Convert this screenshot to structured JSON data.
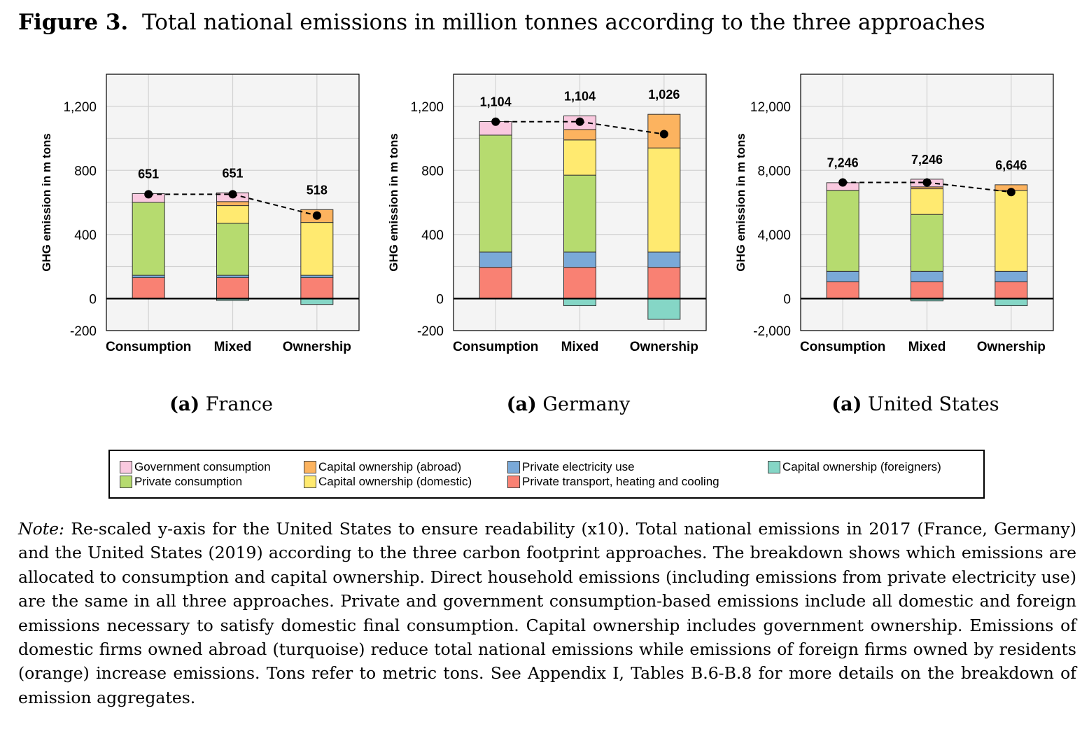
{
  "figure": {
    "label": "Figure 3.",
    "title": "Total national emissions in million tonnes according to the three approaches"
  },
  "component_colors": {
    "private_transport": "#f98173",
    "private_electricity": "#7aa9d8",
    "private_consumption": "#b6db6f",
    "government_consumption": "#f9c9df",
    "capital_domestic": "#ffea70",
    "capital_abroad": "#fcb35f",
    "capital_foreigners": "#85d6c6"
  },
  "legend": {
    "items": [
      {
        "key": "government_consumption",
        "label": "Government consumption",
        "color": "#f9c9df"
      },
      {
        "key": "private_consumption",
        "label": "Private consumption",
        "color": "#b6db6f"
      },
      {
        "key": "capital_abroad",
        "label": "Capital ownership (abroad)",
        "color": "#fcb35f"
      },
      {
        "key": "capital_domestic",
        "label": "Capital ownership (domestic)",
        "color": "#ffea70"
      },
      {
        "key": "private_electricity",
        "label": "Private electricity use",
        "color": "#7aa9d8"
      },
      {
        "key": "private_transport",
        "label": "Private transport, heating and cooling",
        "color": "#f98173"
      },
      {
        "key": "capital_foreigners",
        "label": "Capital ownership (foreigners)",
        "color": "#85d6c6"
      }
    ]
  },
  "chart_data": [
    {
      "type": "bar",
      "stacked": true,
      "caption_letter": "(a)",
      "caption_country": "France",
      "ylabel": "GHG emission in m tons",
      "ylim": [
        -200,
        1400
      ],
      "yticks": [
        -200,
        0,
        400,
        800,
        1200
      ],
      "ytick_labels": [
        "-200",
        "0",
        "400",
        "800",
        "1,200"
      ],
      "categories": [
        "Consumption",
        "Mixed",
        "Ownership"
      ],
      "series": [
        {
          "key": "private_transport",
          "values": [
            130,
            130,
            130
          ]
        },
        {
          "key": "private_electricity",
          "values": [
            15,
            15,
            15
          ]
        },
        {
          "key": "private_consumption",
          "values": [
            455,
            325,
            0
          ]
        },
        {
          "key": "capital_domestic",
          "values": [
            0,
            110,
            330
          ]
        },
        {
          "key": "capital_abroad",
          "values": [
            0,
            25,
            80
          ]
        },
        {
          "key": "government_consumption",
          "values": [
            55,
            55,
            0
          ]
        },
        {
          "key": "capital_foreigners",
          "values": [
            0,
            -12,
            -37
          ]
        }
      ],
      "totals": [
        651,
        651,
        518
      ],
      "total_labels": [
        "651",
        "651",
        "518"
      ]
    },
    {
      "type": "bar",
      "stacked": true,
      "caption_letter": "(a)",
      "caption_country": "Germany",
      "ylabel": "GHG emission in m tons",
      "ylim": [
        -200,
        1400
      ],
      "yticks": [
        -200,
        0,
        400,
        800,
        1200
      ],
      "ytick_labels": [
        "-200",
        "0",
        "400",
        "800",
        "1,200"
      ],
      "categories": [
        "Consumption",
        "Mixed",
        "Ownership"
      ],
      "series": [
        {
          "key": "private_transport",
          "values": [
            195,
            195,
            195
          ]
        },
        {
          "key": "private_electricity",
          "values": [
            95,
            95,
            95
          ]
        },
        {
          "key": "private_consumption",
          "values": [
            730,
            480,
            0
          ]
        },
        {
          "key": "capital_domestic",
          "values": [
            0,
            220,
            650
          ]
        },
        {
          "key": "capital_abroad",
          "values": [
            0,
            65,
            210
          ]
        },
        {
          "key": "government_consumption",
          "values": [
            85,
            85,
            0
          ]
        },
        {
          "key": "capital_foreigners",
          "values": [
            0,
            -45,
            -130
          ]
        }
      ],
      "totals": [
        1104,
        1104,
        1026
      ],
      "total_labels": [
        "1,104",
        "1,104",
        "1,026"
      ]
    },
    {
      "type": "bar",
      "stacked": true,
      "caption_letter": "(a)",
      "caption_country": "United States",
      "ylabel": "GHG emission in m tons",
      "ylim": [
        -2000,
        14000
      ],
      "yticks": [
        -2000,
        0,
        4000,
        8000,
        12000
      ],
      "ytick_labels": [
        "-2,000",
        "0",
        "4,000",
        "8,000",
        "12,000"
      ],
      "categories": [
        "Consumption",
        "Mixed",
        "Ownership"
      ],
      "series": [
        {
          "key": "private_transport",
          "values": [
            1050,
            1050,
            1050
          ]
        },
        {
          "key": "private_electricity",
          "values": [
            650,
            650,
            650
          ]
        },
        {
          "key": "private_consumption",
          "values": [
            5050,
            3550,
            0
          ]
        },
        {
          "key": "capital_domestic",
          "values": [
            0,
            1600,
            5050
          ]
        },
        {
          "key": "capital_abroad",
          "values": [
            0,
            120,
            350
          ]
        },
        {
          "key": "government_consumption",
          "values": [
            480,
            480,
            0
          ]
        },
        {
          "key": "capital_foreigners",
          "values": [
            0,
            -150,
            -450
          ]
        }
      ],
      "totals": [
        7246,
        7246,
        6646
      ],
      "total_labels": [
        "7,246",
        "7,246",
        "6,646"
      ]
    }
  ],
  "note": {
    "label": "Note:",
    "text": " Re-scaled y-axis for the United States to ensure readability (x10). Total national emissions in 2017 (France, Germany) and the United States (2019) according to the three carbon footprint approaches. The breakdown shows which emissions are allocated to consumption and capital ownership. Direct household emissions (including emissions from private electricity use) are the same in all three approaches. Private and government consumption-based emissions include all domestic and foreign emissions necessary to satisfy domestic final consumption. Capital ownership includes government ownership. Emissions of domestic firms owned abroad (turquoise) reduce total national emissions while emissions of foreign firms owned by residents (orange) increase emissions. Tons refer to metric tons. See Appendix I, Tables B.6-B.8 for more details on the breakdown of emission aggregates."
  }
}
